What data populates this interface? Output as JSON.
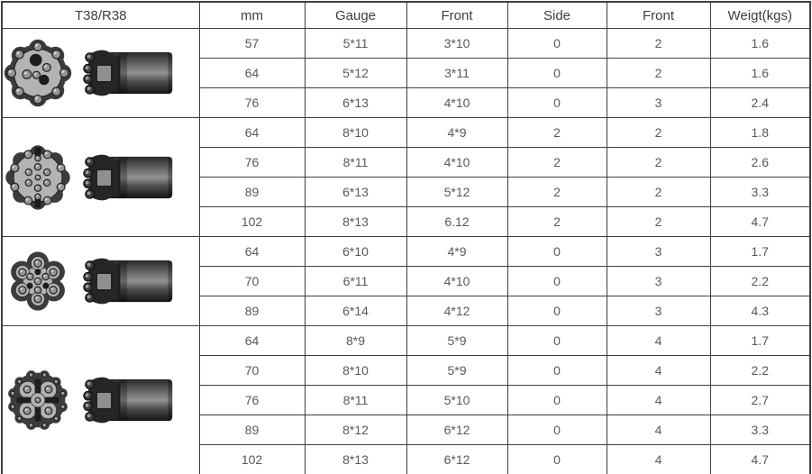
{
  "table": {
    "corner_label": "T38/R38",
    "columns": [
      "mm",
      "Gauge",
      "Front",
      "Side",
      "Front",
      "Weigt(kgs)"
    ],
    "column_keys": [
      "mm",
      "gauge",
      "front-gauge",
      "side",
      "front-count",
      "weight"
    ],
    "groups": [
      {
        "face_icon": "round-face-flush-hole-bit-icon",
        "side_icon": "bit-side-profile-icon",
        "face_type": "A",
        "rows": [
          [
            "57",
            "5*11",
            "3*10",
            "0",
            "2",
            "1.6"
          ],
          [
            "64",
            "5*12",
            "3*11",
            "0",
            "2",
            "1.6"
          ],
          [
            "76",
            "6*13",
            "4*10",
            "0",
            "3",
            "2.4"
          ]
        ]
      },
      {
        "face_icon": "round-face-eight-button-bit-icon",
        "side_icon": "bit-side-profile-icon",
        "face_type": "B",
        "rows": [
          [
            "64",
            "8*10",
            "4*9",
            "2",
            "2",
            "1.8"
          ],
          [
            "76",
            "8*11",
            "4*10",
            "2",
            "2",
            "2.6"
          ],
          [
            "89",
            "6*13",
            "5*12",
            "2",
            "2",
            "3.3"
          ],
          [
            "102",
            "8*13",
            "6.12",
            "2",
            "2",
            "4.7"
          ]
        ]
      },
      {
        "face_icon": "six-lobe-retrac-bit-icon",
        "side_icon": "bit-side-profile-icon",
        "face_type": "C",
        "rows": [
          [
            "64",
            "6*10",
            "4*9",
            "0",
            "3",
            "1.7"
          ],
          [
            "70",
            "6*11",
            "4*10",
            "0",
            "3",
            "2.2"
          ],
          [
            "89",
            "6*14",
            "4*12",
            "0",
            "3",
            "4.3"
          ]
        ]
      },
      {
        "face_icon": "cross-wing-retrac-bit-icon",
        "side_icon": "bit-side-profile-icon",
        "face_type": "D",
        "rows": [
          [
            "64",
            "8*9",
            "5*9",
            "0",
            "4",
            "1.7"
          ],
          [
            "70",
            "8*10",
            "5*9",
            "0",
            "4",
            "2.2"
          ],
          [
            "76",
            "8*11",
            "5*10",
            "0",
            "4",
            "2.7"
          ],
          [
            "89",
            "8*12",
            "6*12",
            "0",
            "4",
            "3.3"
          ],
          [
            "102",
            "8*13",
            "6*12",
            "0",
            "4",
            "4.7"
          ]
        ]
      }
    ]
  },
  "colors": {
    "border": "#3f3f3f",
    "header_text": "#3d3d3d",
    "body_text": "#595959",
    "bit_dark": "#3c3c3c",
    "bit_light": "#b3b3b3",
    "bit_button": "#969696",
    "bit_hole": "#1c1c1c"
  }
}
